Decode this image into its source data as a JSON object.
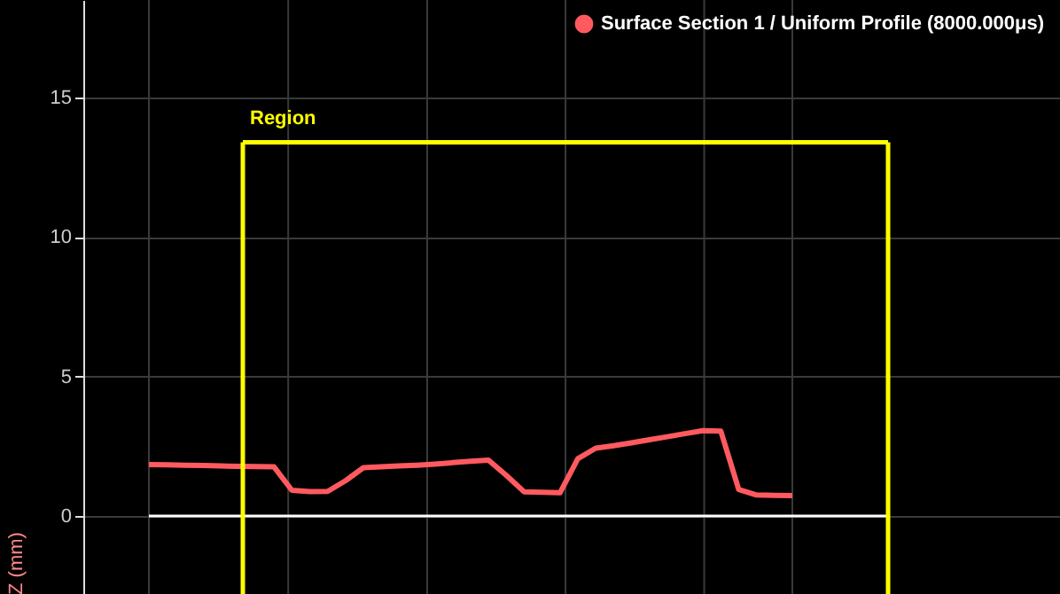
{
  "chart_data": {
    "type": "line",
    "ylabel": "Z (mm)",
    "categories": [
      null,
      null,
      null,
      null,
      null,
      null,
      null,
      null,
      null,
      null,
      null,
      null,
      null,
      null,
      null,
      null,
      null,
      null,
      null,
      null,
      null,
      null,
      null,
      null,
      null,
      null,
      null,
      null,
      null,
      null,
      null,
      null,
      null,
      null,
      null,
      null,
      null
    ],
    "series": [
      {
        "name": "Surface Section 1 / Uniform Profile (8000.000μs)",
        "color": "#ff5a5f",
        "values": [
          1.84,
          1.83,
          1.82,
          1.81,
          1.79,
          1.78,
          1.77,
          1.76,
          0.92,
          0.87,
          0.88,
          1.26,
          1.73,
          1.76,
          1.79,
          1.82,
          1.86,
          1.91,
          1.96,
          2.0,
          1.45,
          0.86,
          0.85,
          0.83,
          2.05,
          2.43,
          2.52,
          2.62,
          2.73,
          2.84,
          2.95,
          3.06,
          3.04,
          0.95,
          0.75,
          0.74,
          0.73
        ]
      }
    ],
    "ylim": [
      -2.8,
      18.5
    ],
    "yticks": [
      0,
      5,
      10,
      15
    ],
    "tick_labels": "y",
    "grid": true,
    "legend": "top right",
    "ref_lines": [
      {
        "axis": "y",
        "value": 0,
        "color": "#ffffff"
      },
      {
        "axis": "y",
        "value": 13.4,
        "label": "Region",
        "color": "#ffff00"
      }
    ]
  }
}
